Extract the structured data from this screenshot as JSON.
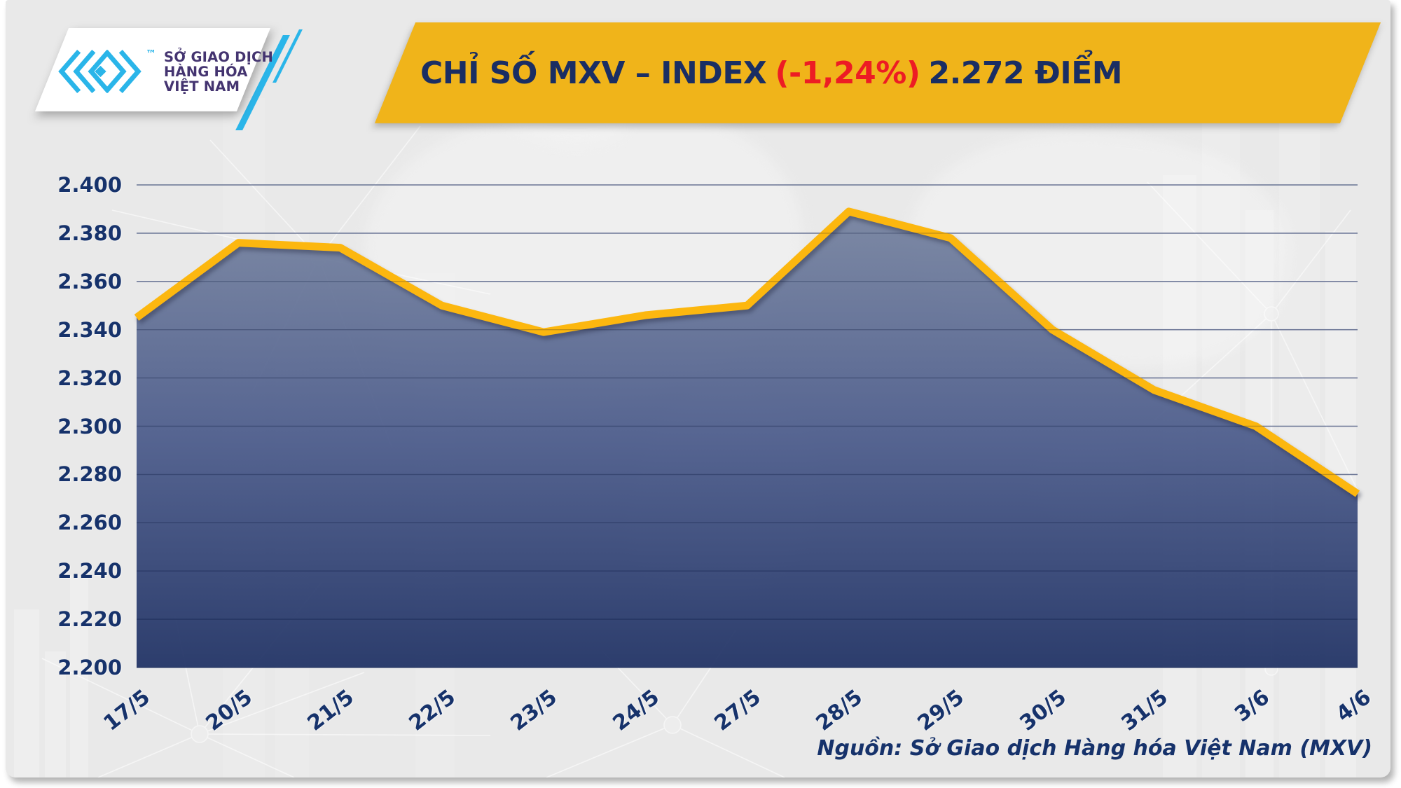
{
  "logo": {
    "trademark": "™",
    "org_lines": [
      "SỞ GIAO DỊCH",
      "HÀNG HÓA",
      "VIỆT NAM"
    ]
  },
  "title": {
    "prefix": "CHỈ SỐ MXV – INDEX",
    "change": "(-1,24%)",
    "suffix": "2.272 ĐIỂM"
  },
  "source_note": "Nguồn: Sở Giao dịch Hàng hóa Việt Nam (MXV)",
  "colors": {
    "banner": "#f0b41a",
    "line": "#fcb70f",
    "title_navy": "#1a2e63",
    "title_red": "#ed1c24",
    "axis_navy": "#16326b",
    "logo_cyan": "#2ab5e9",
    "logo_purple": "#443470",
    "card_bg": "#e9e9e9",
    "gridline": "#7b87ac",
    "area_top": "#75829f",
    "area_mid": "#4a5a8a",
    "area_bottom": "#1e3063"
  },
  "chart_data": {
    "type": "area",
    "title": "CHỈ SỐ MXV – INDEX (-1,24%) 2.272 ĐIỂM",
    "categories": [
      "17/5",
      "20/5",
      "21/5",
      "22/5",
      "23/5",
      "24/5",
      "27/5",
      "28/5",
      "29/5",
      "30/5",
      "31/5",
      "3/6",
      "4/6"
    ],
    "values": [
      2.345,
      2.376,
      2.374,
      2.35,
      2.339,
      2.346,
      2.35,
      2.389,
      2.378,
      2.34,
      2.315,
      2.3,
      2.272
    ],
    "series_name": "MXV-Index",
    "xlabel": "",
    "ylabel": "",
    "ylim": [
      2.2,
      2.4
    ],
    "ytick_step": 0.02,
    "ytick_labels": [
      "2.200",
      "2.220",
      "2.240",
      "2.260",
      "2.280",
      "2.300",
      "2.320",
      "2.340",
      "2.360",
      "2.380",
      "2.400"
    ],
    "grid": "horizontal",
    "legend": "none",
    "last_value_label": "2.272",
    "change_label": "(-1,24%)"
  }
}
